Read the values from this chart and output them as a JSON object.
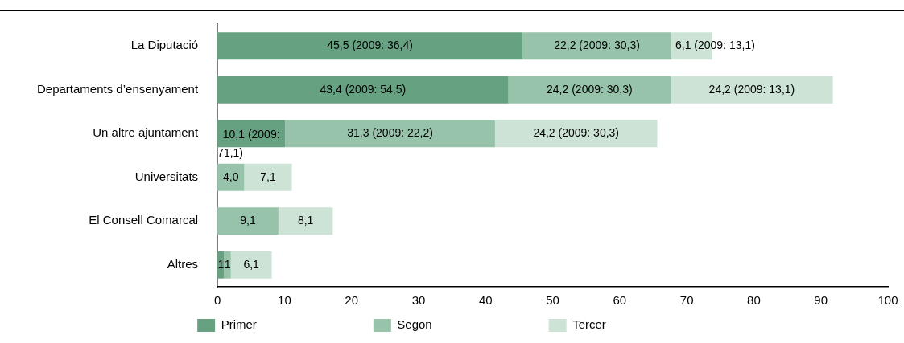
{
  "chart_data": {
    "type": "bar",
    "orientation": "horizontal",
    "stacked": true,
    "categories": [
      "La Diputació",
      "Departaments d’ensenyament",
      "Un altre ajuntament",
      "Universitats",
      "El Consell Comarcal",
      "Altres"
    ],
    "series": [
      {
        "name": "Primer",
        "color": "#66a182",
        "values": [
          45.5,
          43.4,
          10.1,
          0,
          0,
          1
        ],
        "value_labels": [
          "45,5 (2009: 36,4)",
          "43,4 (2009: 54,5)",
          "10,1 (2009: 71,1)",
          null,
          null,
          "1"
        ]
      },
      {
        "name": "Segon",
        "color": "#98c3ab",
        "values": [
          22.2,
          24.2,
          31.3,
          4.0,
          9.1,
          1
        ],
        "value_labels": [
          "22,2 (2009: 30,3)",
          "24,2 (2009: 30,3)",
          "31,3 (2009: 22,2)",
          "4,0",
          "9,1",
          "1"
        ]
      },
      {
        "name": "Tercer",
        "color": "#cde3d6",
        "values": [
          6.1,
          24.2,
          24.2,
          7.1,
          8.1,
          6.1
        ],
        "value_labels": [
          "6,1 (2009: 13,1)",
          "24,2 (2009: 13,1)",
          "24,2 (2009: 30,3)",
          "7,1",
          "8,1",
          "6,1"
        ]
      }
    ],
    "xlim": [
      0,
      100
    ],
    "xticks": [
      0,
      10,
      20,
      30,
      40,
      50,
      60,
      70,
      80,
      90,
      100
    ],
    "grid": false,
    "legend": "bottom"
  }
}
